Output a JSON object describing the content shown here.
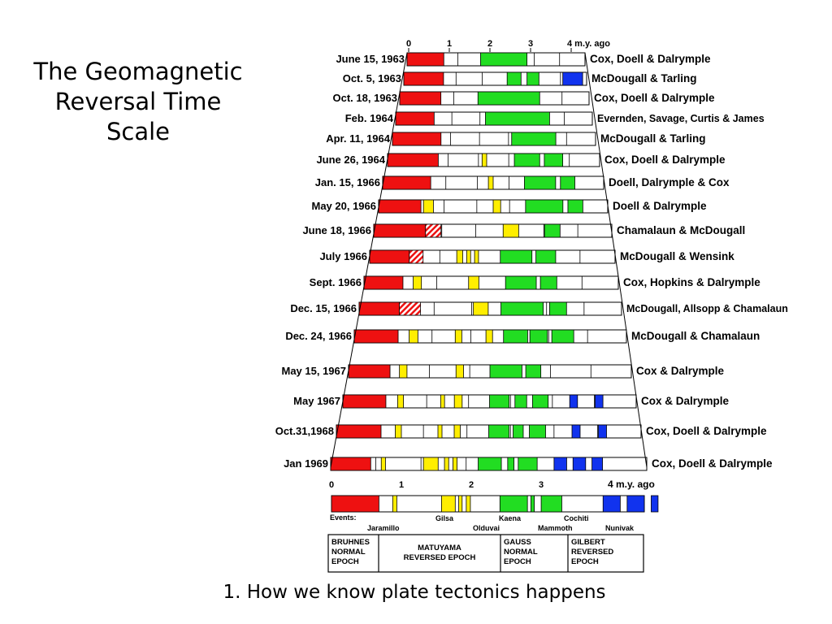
{
  "slide": {
    "title": "The Geomagnetic Reversal Time Scale",
    "caption": "1. How we know plate tectonics happens"
  },
  "colors": {
    "normal_brunhes": "#ee1111",
    "normal_matuyama_event": "#ffee00",
    "normal_gauss": "#22dd22",
    "normal_gilbert": "#1133ee",
    "reversed": "#ffffff",
    "outline": "#000000"
  },
  "top_axis": {
    "ticks": [
      "0",
      "1",
      "2",
      "3"
    ],
    "last_tick": "4 m.y. ago"
  },
  "records": [
    {
      "date": "June 15, 1963",
      "authors": "Cox, Doell & Dalrymple",
      "normal": [
        {
          "from": 0,
          "to": 0.95,
          "epoch": "brunhes"
        },
        {
          "from": 1.9,
          "to": 3.1,
          "epoch": "gauss"
        }
      ]
    },
    {
      "date": "Oct. 5, 1963",
      "authors": "McDougall & Tarling",
      "normal": [
        {
          "from": 0,
          "to": 1.0,
          "epoch": "brunhes"
        },
        {
          "from": 2.6,
          "to": 2.95,
          "epoch": "gauss"
        },
        {
          "from": 3.1,
          "to": 3.4,
          "epoch": "gauss"
        },
        {
          "from": 4.0,
          "to": 4.5,
          "epoch": "gilbert"
        }
      ]
    },
    {
      "date": "Oct. 18, 1963",
      "authors": "Cox, Doell & Dalrymple",
      "normal": [
        {
          "from": 0,
          "to": 1.0,
          "epoch": "brunhes"
        },
        {
          "from": 1.9,
          "to": 3.4,
          "epoch": "gauss"
        }
      ]
    },
    {
      "date": "Feb. 1964",
      "authors": "Evernden, Savage, Curtis & James",
      "normal": [
        {
          "from": 0,
          "to": 0.9,
          "epoch": "brunhes"
        },
        {
          "from": 2.1,
          "to": 3.6,
          "epoch": "gauss"
        }
      ]
    },
    {
      "date": "Apr. 11, 1964",
      "authors": "McDougall & Tarling",
      "normal": [
        {
          "from": 0,
          "to": 1.1,
          "epoch": "brunhes"
        },
        {
          "from": 2.7,
          "to": 3.7,
          "epoch": "gauss"
        }
      ]
    },
    {
      "date": "June 26, 1964",
      "authors": "Cox, Doell & Dalrymple",
      "normal": [
        {
          "from": 0,
          "to": 1.1,
          "epoch": "brunhes"
        },
        {
          "from": 2.05,
          "to": 2.15,
          "epoch": "matuyama"
        },
        {
          "from": 2.75,
          "to": 3.3,
          "epoch": "gauss"
        },
        {
          "from": 3.4,
          "to": 3.8,
          "epoch": "gauss"
        }
      ]
    },
    {
      "date": "Jan. 15, 1966",
      "authors": "Doell, Dalrymple & Cox",
      "normal": [
        {
          "from": 0,
          "to": 1.0,
          "epoch": "brunhes"
        },
        {
          "from": 2.2,
          "to": 2.3,
          "epoch": "matuyama"
        },
        {
          "from": 2.95,
          "to": 3.6,
          "epoch": "gauss"
        },
        {
          "from": 3.7,
          "to": 4.0,
          "epoch": "gauss"
        }
      ]
    },
    {
      "date": "May 20, 1966",
      "authors": "Doell & Dalrymple",
      "normal": [
        {
          "from": 0,
          "to": 0.85,
          "epoch": "brunhes"
        },
        {
          "from": 0.9,
          "to": 1.1,
          "epoch": "matuyama"
        },
        {
          "from": 2.3,
          "to": 2.45,
          "epoch": "matuyama"
        },
        {
          "from": 2.95,
          "to": 3.7,
          "epoch": "gauss"
        },
        {
          "from": 3.8,
          "to": 4.1,
          "epoch": "gauss"
        }
      ]
    },
    {
      "date": "June 18, 1966",
      "authors": "Chamalaun & McDougall",
      "normal": [
        {
          "from": 0,
          "to": 1.0,
          "epoch": "brunhes"
        },
        {
          "from": 2.5,
          "to": 2.8,
          "epoch": "matuyama"
        },
        {
          "from": 3.3,
          "to": 3.6,
          "epoch": "gauss"
        }
      ],
      "uncertain": [
        {
          "from": 1.0,
          "to": 1.3
        }
      ]
    },
    {
      "date": "July 1966",
      "authors": "McDougall & Wensink",
      "normal": [
        {
          "from": 0,
          "to": 1.0,
          "epoch": "brunhes"
        },
        {
          "from": 2.2,
          "to": 2.35,
          "epoch": "matuyama"
        },
        {
          "from": 2.45,
          "to": 2.55,
          "epoch": "matuyama"
        },
        {
          "from": 2.65,
          "to": 2.75,
          "epoch": "matuyama"
        },
        {
          "from": 3.3,
          "to": 4.1,
          "epoch": "gauss"
        },
        {
          "from": 4.2,
          "to": 4.7,
          "epoch": "gauss"
        }
      ],
      "uncertain": [
        {
          "from": 1.0,
          "to": 1.35
        }
      ]
    },
    {
      "date": "Sept. 1966",
      "authors": "Cox, Hopkins & Dalrymple",
      "normal": [
        {
          "from": 0,
          "to": 0.95,
          "epoch": "brunhes"
        },
        {
          "from": 1.2,
          "to": 1.4,
          "epoch": "matuyama"
        },
        {
          "from": 2.55,
          "to": 2.8,
          "epoch": "matuyama"
        },
        {
          "from": 3.45,
          "to": 4.2,
          "epoch": "gauss"
        },
        {
          "from": 4.3,
          "to": 4.7,
          "epoch": "gauss"
        }
      ]
    },
    {
      "date": "Dec. 15, 1966",
      "authors": "McDougall, Allsopp & Chamalaun",
      "normal": [
        {
          "from": 0,
          "to": 0.95,
          "epoch": "brunhes"
        },
        {
          "from": 2.7,
          "to": 3.05,
          "epoch": "matuyama"
        },
        {
          "from": 3.35,
          "to": 4.35,
          "epoch": "gauss"
        },
        {
          "from": 4.5,
          "to": 4.9,
          "epoch": "gauss"
        }
      ],
      "uncertain": [
        {
          "from": 0.95,
          "to": 1.45
        }
      ]
    },
    {
      "date": "Dec. 24, 1966",
      "authors": "McDougall & Chamalaun",
      "normal": [
        {
          "from": 0,
          "to": 1.0,
          "epoch": "brunhes"
        },
        {
          "from": 1.25,
          "to": 1.45,
          "epoch": "matuyama"
        },
        {
          "from": 2.3,
          "to": 2.45,
          "epoch": "matuyama"
        },
        {
          "from": 3.0,
          "to": 3.15,
          "epoch": "matuyama"
        },
        {
          "from": 3.4,
          "to": 3.95,
          "epoch": "gauss"
        },
        {
          "from": 4.0,
          "to": 4.4,
          "epoch": "gauss"
        },
        {
          "from": 4.5,
          "to": 5.0,
          "epoch": "gauss"
        }
      ]
    },
    {
      "date": "May 15, 1967",
      "authors": "Cox & Dalrymple",
      "normal": [
        {
          "from": 0,
          "to": 1.1,
          "epoch": "brunhes"
        },
        {
          "from": 1.35,
          "to": 1.55,
          "epoch": "matuyama"
        },
        {
          "from": 2.85,
          "to": 3.05,
          "epoch": "matuyama"
        },
        {
          "from": 3.75,
          "to": 4.6,
          "epoch": "gauss"
        },
        {
          "from": 4.7,
          "to": 5.1,
          "epoch": "gauss"
        }
      ]
    },
    {
      "date": "May 1967",
      "authors": "Cox & Dalrymple",
      "normal": [
        {
          "from": 0,
          "to": 1.1,
          "epoch": "brunhes"
        },
        {
          "from": 1.4,
          "to": 1.55,
          "epoch": "matuyama"
        },
        {
          "from": 2.5,
          "to": 2.6,
          "epoch": "matuyama"
        },
        {
          "from": 2.85,
          "to": 3.05,
          "epoch": "matuyama"
        },
        {
          "from": 3.75,
          "to": 4.25,
          "epoch": "gauss"
        },
        {
          "from": 4.4,
          "to": 4.7,
          "epoch": "gauss"
        },
        {
          "from": 4.85,
          "to": 5.25,
          "epoch": "gauss"
        },
        {
          "from": 5.8,
          "to": 6.0,
          "epoch": "gilbert"
        },
        {
          "from": 6.45,
          "to": 6.65,
          "epoch": "gilbert"
        }
      ]
    },
    {
      "date": "Oct.31,1968",
      "authors": "Cox, Doell & Dalrymple",
      "normal": [
        {
          "from": 0,
          "to": 1.1,
          "epoch": "brunhes"
        },
        {
          "from": 1.45,
          "to": 1.6,
          "epoch": "matuyama"
        },
        {
          "from": 2.5,
          "to": 2.6,
          "epoch": "matuyama"
        },
        {
          "from": 2.9,
          "to": 3.05,
          "epoch": "matuyama"
        },
        {
          "from": 3.75,
          "to": 4.25,
          "epoch": "gauss"
        },
        {
          "from": 4.35,
          "to": 4.6,
          "epoch": "gauss"
        },
        {
          "from": 4.75,
          "to": 5.15,
          "epoch": "gauss"
        },
        {
          "from": 5.8,
          "to": 6.0,
          "epoch": "gilbert"
        },
        {
          "from": 6.45,
          "to": 6.65,
          "epoch": "gilbert"
        }
      ]
    },
    {
      "date": "Jan 1969",
      "authors": "Cox, Doell & Dalrymple",
      "normal": [
        {
          "from": 0,
          "to": 0.95,
          "epoch": "brunhes"
        },
        {
          "from": 1.2,
          "to": 1.3,
          "epoch": "matuyama"
        },
        {
          "from": 2.2,
          "to": 2.55,
          "epoch": "matuyama"
        },
        {
          "from": 2.7,
          "to": 2.8,
          "epoch": "matuyama"
        },
        {
          "from": 2.9,
          "to": 3.0,
          "epoch": "matuyama"
        },
        {
          "from": 3.5,
          "to": 4.05,
          "epoch": "gauss"
        },
        {
          "from": 4.2,
          "to": 4.35,
          "epoch": "gauss"
        },
        {
          "from": 4.45,
          "to": 4.9,
          "epoch": "gauss"
        },
        {
          "from": 5.3,
          "to": 5.6,
          "epoch": "gilbert"
        },
        {
          "from": 5.75,
          "to": 6.05,
          "epoch": "gilbert"
        },
        {
          "from": 6.2,
          "to": 6.45,
          "epoch": "gilbert"
        }
      ]
    }
  ],
  "summary": {
    "ticks": [
      "0",
      "1",
      "2",
      "3"
    ],
    "last_tick": "4 m.y. ago",
    "normal": [
      {
        "from": 0,
        "to": 0.69,
        "epoch": "brunhes"
      },
      {
        "from": 0.89,
        "to": 0.95,
        "epoch": "matuyama"
      },
      {
        "from": 1.6,
        "to": 1.8,
        "epoch": "matuyama"
      },
      {
        "from": 1.85,
        "to": 1.9,
        "epoch": "matuyama"
      },
      {
        "from": 1.96,
        "to": 2.02,
        "epoch": "matuyama"
      },
      {
        "from": 2.45,
        "to": 2.85,
        "epoch": "gauss"
      },
      {
        "from": 2.9,
        "to": 2.95,
        "epoch": "gauss"
      },
      {
        "from": 3.05,
        "to": 3.35,
        "epoch": "gauss"
      },
      {
        "from": 3.95,
        "to": 4.2,
        "epoch": "gilbert"
      },
      {
        "from": 4.3,
        "to": 4.55,
        "epoch": "gilbert"
      },
      {
        "from": 4.65,
        "to": 4.75,
        "epoch": "gilbert"
      }
    ],
    "events_label": "Events:",
    "events": [
      "Jaramillo",
      "Gilsa",
      "Olduvai",
      "Kaena",
      "Mammoth",
      "Cochiti",
      "Nunivak"
    ]
  },
  "epochs": [
    {
      "line1": "BRUHNES",
      "line2": "NORMAL",
      "line3": "EPOCH"
    },
    {
      "line1": "MATUYAMA",
      "line2": "REVERSED EPOCH",
      "line3": ""
    },
    {
      "line1": "GAUSS",
      "line2": "NORMAL",
      "line3": "EPOCH"
    },
    {
      "line1": "GILBERT",
      "line2": "REVERSED",
      "line3": "EPOCH"
    }
  ]
}
